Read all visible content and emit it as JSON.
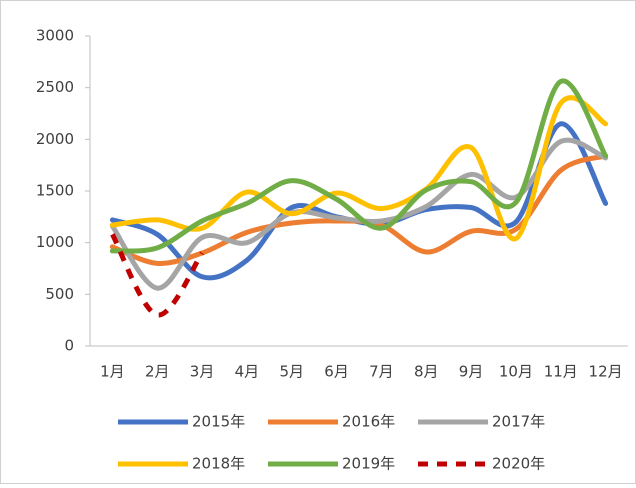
{
  "chart_data": {
    "type": "line",
    "smooth": true,
    "categories": [
      "1月",
      "2月",
      "3月",
      "4月",
      "5月",
      "6月",
      "7月",
      "8月",
      "9月",
      "10月",
      "11月",
      "12月"
    ],
    "series": [
      {
        "name": "2015年",
        "color": "#4472c4",
        "values": [
          1220,
          1080,
          670,
          830,
          1340,
          1250,
          1180,
          1320,
          1340,
          1200,
          2150,
          1380
        ]
      },
      {
        "name": "2016年",
        "color": "#ed7d31",
        "values": [
          960,
          800,
          900,
          1100,
          1190,
          1210,
          1170,
          910,
          1110,
          1130,
          1700,
          1840
        ]
      },
      {
        "name": "2017年",
        "color": "#a5a5a5",
        "values": [
          1160,
          560,
          1050,
          1000,
          1290,
          1240,
          1210,
          1350,
          1660,
          1440,
          1980,
          1820
        ]
      },
      {
        "name": "2018年",
        "color": "#ffc000",
        "values": [
          1170,
          1220,
          1140,
          1490,
          1280,
          1480,
          1330,
          1520,
          1920,
          1040,
          2350,
          2150
        ]
      },
      {
        "name": "2019年",
        "color": "#70ad47",
        "values": [
          920,
          950,
          1210,
          1380,
          1600,
          1420,
          1140,
          1510,
          1590,
          1390,
          2560,
          1840
        ]
      },
      {
        "name": "2020年",
        "color": "#c00000",
        "dashed": true,
        "values": [
          1080,
          300,
          900,
          null,
          null,
          null,
          null,
          null,
          null,
          null,
          null,
          null
        ]
      }
    ],
    "ylim": [
      0,
      3000
    ],
    "yticks": [
      0,
      500,
      1000,
      1500,
      2000,
      2500,
      3000
    ],
    "grid": false,
    "legend": "bottom"
  }
}
